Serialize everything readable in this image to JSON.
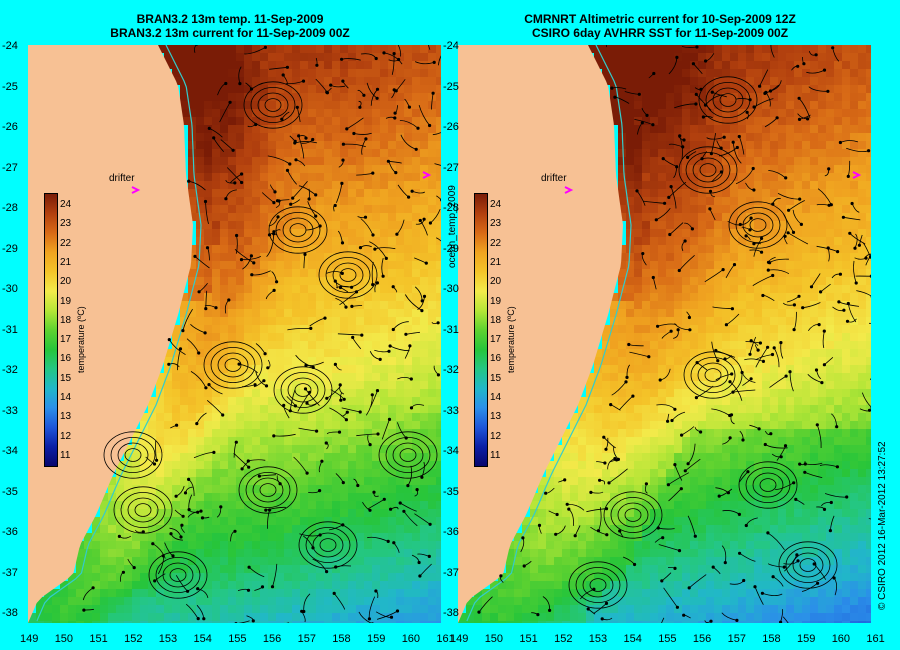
{
  "left_title": {
    "line1": "BRAN3.2 13m temp. 11-Sep-2009",
    "line2": "BRAN3.2 13m current for 11-Sep-2009 00Z"
  },
  "right_title": {
    "line1": "CMRNRT Altimetric current for 10-Sep-2009 12Z",
    "line2": "CSIRO 6day AVHRR SST for 11-Sep-2009 00Z"
  },
  "y_ticks": [
    "-24",
    "-25",
    "-26",
    "-27",
    "-28",
    "-29",
    "-30",
    "-31",
    "-32",
    "-33",
    "-34",
    "-35",
    "-36",
    "-37",
    "-38"
  ],
  "x_ticks": [
    "149",
    "150",
    "151",
    "152",
    "153",
    "154",
    "155",
    "156",
    "157",
    "158",
    "159",
    "160",
    "161"
  ],
  "colorbar": {
    "ticks": [
      "24",
      "23",
      "22",
      "21",
      "20",
      "19",
      "18",
      "17",
      "16",
      "15",
      "14",
      "13",
      "12",
      "11"
    ],
    "label": "temperature (ºC)"
  },
  "drifter_label": "drifter",
  "side_label": "ocean_temp_2009",
  "copyright": "© CSIRO 2012   16-Mar-2012 13:27:52",
  "colors": {
    "background": "#00ffff",
    "land": "#f7c194",
    "drifter_marker": "#ff00ff",
    "coastline": "#33cccc"
  }
}
